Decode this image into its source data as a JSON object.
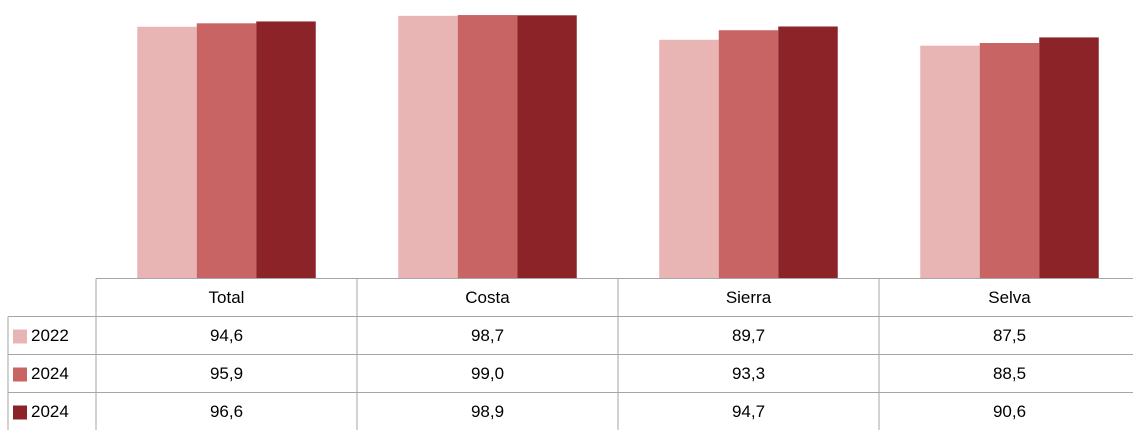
{
  "chart_data": {
    "type": "bar",
    "categories": [
      "Total",
      "Costa",
      "Sierra",
      "Selva"
    ],
    "series": [
      {
        "name": "2022",
        "color": "#e8b4b4",
        "values": [
          94.6,
          98.7,
          89.7,
          87.5
        ],
        "value_labels": [
          "94,6",
          "98,7",
          "89,7",
          "87,5"
        ]
      },
      {
        "name": "2024",
        "color": "#c86464",
        "values": [
          95.9,
          99.0,
          93.3,
          88.5
        ],
        "value_labels": [
          "95,9",
          "99,0",
          "93,3",
          "88,5"
        ]
      },
      {
        "name": "2024",
        "color": "#8b2328",
        "values": [
          96.6,
          98.9,
          94.7,
          90.6
        ],
        "value_labels": [
          "96,6",
          "98,9",
          "94,7",
          "90,6"
        ]
      }
    ],
    "ylim": [
      0,
      100
    ]
  }
}
